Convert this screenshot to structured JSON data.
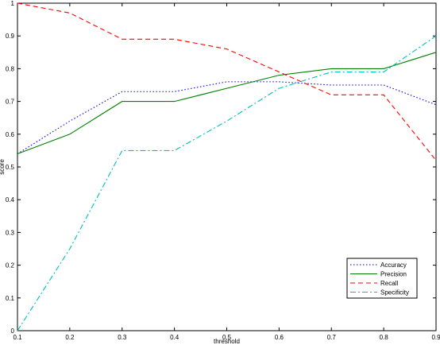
{
  "chart_data": {
    "type": "line",
    "xlabel": "threshold",
    "ylabel": "score",
    "xlim": [
      0.1,
      0.9
    ],
    "ylim": [
      0,
      1
    ],
    "x_ticks": [
      0.1,
      0.2,
      0.3,
      0.4,
      0.5,
      0.6,
      0.7,
      0.8,
      0.9
    ],
    "x_tick_labels": [
      "0.1",
      "0.2",
      "0.3",
      "0.4",
      "0.5",
      "0.6",
      "0.7",
      "0.8",
      "0.9"
    ],
    "y_ticks": [
      0,
      0.1,
      0.2,
      0.3,
      0.4,
      0.5,
      0.6,
      0.7,
      0.8,
      0.9,
      1
    ],
    "y_tick_labels": [
      "0",
      "0.1",
      "0.2",
      "0.3",
      "0.4",
      "0.5",
      "0.6",
      "0.7",
      "0.8",
      "0.9",
      "1"
    ],
    "grid": false,
    "legend_position": "bottom-right",
    "x": [
      0.1,
      0.2,
      0.3,
      0.4,
      0.5,
      0.6,
      0.7,
      0.8,
      0.9
    ],
    "series": [
      {
        "name": "Accuracy",
        "color": "#0000ff",
        "style": "dotted",
        "values": [
          0.54,
          0.64,
          0.73,
          0.73,
          0.76,
          0.76,
          0.75,
          0.75,
          0.69
        ]
      },
      {
        "name": "Precision",
        "color": "#008000",
        "style": "solid",
        "values": [
          0.54,
          0.6,
          0.7,
          0.7,
          0.74,
          0.78,
          0.8,
          0.8,
          0.85
        ]
      },
      {
        "name": "Recall",
        "color": "#ff0000",
        "style": "dashed",
        "values": [
          1.0,
          0.97,
          0.89,
          0.89,
          0.86,
          0.79,
          0.72,
          0.72,
          0.52
        ]
      },
      {
        "name": "Specificity",
        "color": "#00bfbf",
        "style": "dashdot",
        "values": [
          0.0,
          0.25,
          0.55,
          0.55,
          0.64,
          0.74,
          0.79,
          0.79,
          0.9
        ]
      }
    ]
  }
}
